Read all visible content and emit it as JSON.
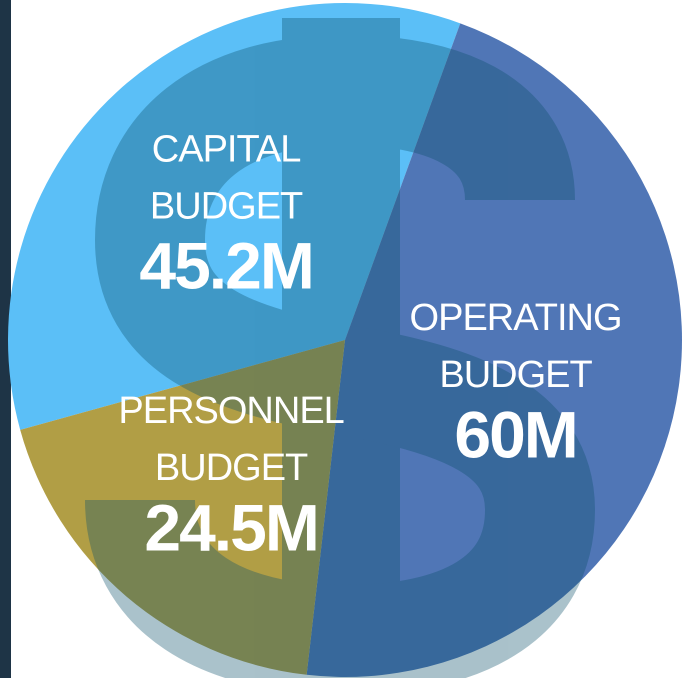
{
  "chart_data": {
    "type": "pie",
    "categories": [
      "CAPITAL BUDGET",
      "OPERATING BUDGET",
      "PERSONNEL BUDGET"
    ],
    "values": [
      45.2,
      60,
      24.5
    ],
    "value_labels": [
      "45.2M",
      "60M",
      "24.5M"
    ],
    "colors": [
      "#5bbff7",
      "#5076b6",
      "#b19e45"
    ]
  }
}
